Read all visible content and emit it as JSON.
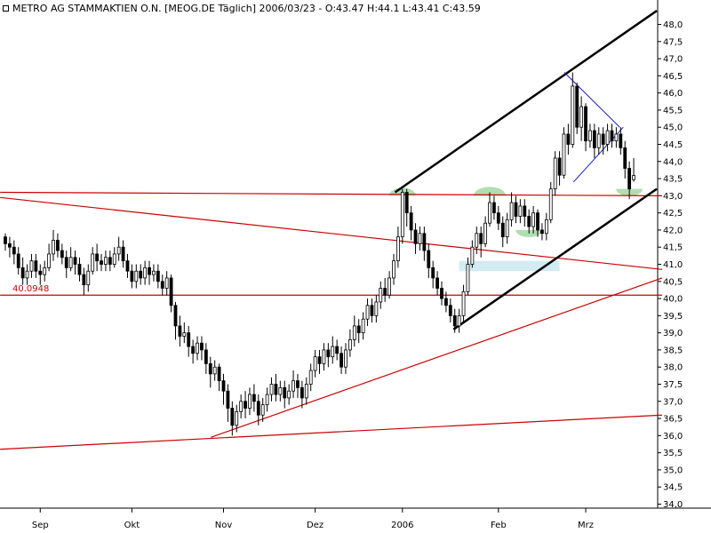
{
  "header": {
    "title": "METRO AG STAMMAKTIEN O.N. [MEOG.DE  Täglich] 2006/03/23 - O:43.47 H:44.1 L:43.41 C:43.59"
  },
  "colors": {
    "background": "#ffffff",
    "candle": "#000000",
    "trendline_red": "#cc0000",
    "channel_black": "#000000",
    "triangle_blue": "#1a1acc",
    "highlight_green": "#8fd08f",
    "highlight_blue": "#c8e6f0"
  },
  "chart_data": {
    "type": "candlestick",
    "title": "METRO AG STAMMAKTIEN O.N. [MEOG.DE  Täglich] 2006/03/23 - O:43.47 H:44.1 L:43.41 C:43.59",
    "ylim": [
      34.0,
      48.0
    ],
    "y_ticks": [
      "48,0",
      "47,5",
      "47,0",
      "46,5",
      "46,0",
      "45,5",
      "45,0",
      "44,5",
      "44,0",
      "43,5",
      "43,0",
      "42,5",
      "42,0",
      "41,5",
      "41,0",
      "40,5",
      "40,0",
      "39,5",
      "39,0",
      "38,5",
      "38,0",
      "37,5",
      "37,0",
      "36,5",
      "36,0",
      "35,5",
      "35,0",
      "34,5",
      "34,0"
    ],
    "x_ticks": [
      {
        "label": "Sep",
        "bar": 8
      },
      {
        "label": "Okt",
        "bar": 29
      },
      {
        "label": "Nov",
        "bar": 50
      },
      {
        "label": "Dez",
        "bar": 71
      },
      {
        "label": "2006",
        "bar": 91
      },
      {
        "label": "Feb",
        "bar": 113
      },
      {
        "label": "Mrz",
        "bar": 133
      }
    ],
    "price_level_label": "40.0948",
    "candles": [
      [
        41.8,
        41.6,
        41.9,
        41.4
      ],
      [
        41.6,
        41.5,
        41.8,
        41.2
      ],
      [
        41.5,
        41.3,
        41.7,
        41.0
      ],
      [
        41.3,
        40.9,
        41.5,
        40.7
      ],
      [
        40.9,
        40.6,
        41.2,
        40.4
      ],
      [
        40.6,
        40.8,
        41.0,
        40.4
      ],
      [
        40.8,
        41.1,
        41.3,
        40.6
      ],
      [
        41.1,
        40.8,
        41.3,
        40.6
      ],
      [
        40.8,
        40.7,
        41.0,
        40.4
      ],
      [
        40.7,
        40.9,
        41.1,
        40.5
      ],
      [
        40.9,
        41.3,
        41.6,
        40.8
      ],
      [
        41.3,
        41.7,
        42.0,
        41.1
      ],
      [
        41.7,
        41.4,
        41.9,
        41.2
      ],
      [
        41.4,
        41.2,
        41.6,
        41.0
      ],
      [
        41.2,
        40.9,
        41.4,
        40.6
      ],
      [
        40.9,
        41.2,
        41.5,
        40.8
      ],
      [
        41.2,
        41.0,
        41.4,
        40.7
      ],
      [
        41.0,
        40.7,
        41.2,
        40.5
      ],
      [
        40.7,
        40.4,
        40.9,
        40.1
      ],
      [
        40.4,
        40.8,
        41.0,
        40.2
      ],
      [
        40.8,
        41.3,
        41.5,
        40.7
      ],
      [
        41.3,
        41.1,
        41.6,
        40.8
      ],
      [
        41.1,
        41.0,
        41.3,
        40.8
      ],
      [
        41.0,
        41.2,
        41.4,
        40.8
      ],
      [
        41.2,
        41.0,
        41.4,
        40.8
      ],
      [
        41.0,
        41.3,
        41.5,
        40.9
      ],
      [
        41.3,
        41.5,
        41.8,
        41.1
      ],
      [
        41.5,
        41.1,
        41.7,
        40.9
      ],
      [
        41.1,
        40.8,
        41.3,
        40.6
      ],
      [
        40.8,
        40.5,
        41.0,
        40.3
      ],
      [
        40.5,
        40.8,
        41.0,
        40.3
      ],
      [
        40.8,
        40.6,
        41.0,
        40.4
      ],
      [
        40.6,
        40.9,
        41.1,
        40.4
      ],
      [
        40.9,
        40.7,
        41.1,
        40.4
      ],
      [
        40.7,
        40.8,
        41.0,
        40.5
      ],
      [
        40.8,
        40.5,
        41.0,
        40.3
      ],
      [
        40.5,
        40.3,
        40.7,
        40.1
      ],
      [
        40.3,
        40.6,
        40.8,
        40.1
      ],
      [
        40.6,
        39.8,
        40.7,
        39.6
      ],
      [
        39.8,
        39.2,
        39.9,
        38.8
      ],
      [
        39.2,
        38.9,
        39.5,
        38.6
      ],
      [
        38.9,
        39.0,
        39.3,
        38.7
      ],
      [
        39.0,
        38.6,
        39.2,
        38.3
      ],
      [
        38.6,
        38.4,
        38.8,
        38.1
      ],
      [
        38.4,
        38.7,
        38.9,
        38.2
      ],
      [
        38.7,
        38.5,
        38.9,
        38.2
      ],
      [
        38.5,
        38.1,
        38.7,
        37.8
      ],
      [
        38.1,
        37.8,
        38.3,
        37.4
      ],
      [
        37.8,
        38.0,
        38.2,
        37.6
      ],
      [
        38.0,
        37.6,
        38.1,
        37.3
      ],
      [
        37.6,
        37.3,
        37.8,
        36.9
      ],
      [
        37.3,
        36.8,
        37.5,
        36.4
      ],
      [
        36.8,
        36.3,
        37.0,
        36.0
      ],
      [
        36.3,
        36.7,
        36.9,
        36.1
      ],
      [
        36.7,
        37.0,
        37.2,
        36.5
      ],
      [
        37.0,
        36.8,
        37.3,
        36.5
      ],
      [
        36.8,
        37.2,
        37.4,
        36.6
      ],
      [
        37.2,
        37.0,
        37.5,
        36.7
      ],
      [
        37.0,
        36.6,
        37.2,
        36.3
      ],
      [
        36.6,
        36.9,
        37.1,
        36.4
      ],
      [
        36.9,
        37.2,
        37.4,
        36.7
      ],
      [
        37.2,
        37.5,
        37.7,
        37.0
      ],
      [
        37.5,
        37.2,
        37.8,
        37.0
      ],
      [
        37.2,
        37.4,
        37.6,
        37.0
      ],
      [
        37.4,
        37.1,
        37.6,
        36.8
      ],
      [
        37.1,
        37.3,
        37.5,
        36.9
      ],
      [
        37.3,
        37.6,
        37.9,
        37.1
      ],
      [
        37.6,
        37.4,
        37.8,
        37.1
      ],
      [
        37.4,
        37.1,
        37.6,
        36.8
      ],
      [
        37.1,
        37.5,
        37.7,
        36.9
      ],
      [
        37.5,
        37.9,
        38.1,
        37.3
      ],
      [
        37.9,
        38.3,
        38.5,
        37.7
      ],
      [
        38.3,
        38.1,
        38.5,
        37.8
      ],
      [
        38.1,
        38.5,
        38.7,
        37.9
      ],
      [
        38.5,
        38.3,
        38.7,
        38.0
      ],
      [
        38.3,
        38.6,
        38.9,
        38.1
      ],
      [
        38.6,
        38.4,
        38.8,
        38.2
      ],
      [
        38.4,
        38.0,
        38.6,
        37.8
      ],
      [
        38.0,
        38.5,
        38.7,
        37.8
      ],
      [
        38.5,
        38.8,
        39.1,
        38.3
      ],
      [
        38.8,
        39.2,
        39.5,
        38.6
      ],
      [
        39.2,
        39.0,
        39.4,
        38.7
      ],
      [
        39.0,
        39.4,
        39.6,
        38.8
      ],
      [
        39.4,
        39.8,
        40.0,
        39.2
      ],
      [
        39.8,
        39.5,
        40.0,
        39.3
      ],
      [
        39.5,
        39.9,
        40.1,
        39.3
      ],
      [
        39.9,
        40.3,
        40.5,
        39.7
      ],
      [
        40.3,
        40.1,
        40.6,
        39.9
      ],
      [
        40.1,
        40.6,
        40.8,
        40.0
      ],
      [
        40.6,
        41.1,
        41.3,
        40.4
      ],
      [
        41.1,
        41.8,
        42.1,
        40.9
      ],
      [
        41.8,
        43.1,
        43.2,
        41.6
      ],
      [
        43.1,
        42.5,
        43.2,
        42.1
      ],
      [
        42.5,
        42.0,
        42.7,
        41.7
      ],
      [
        42.0,
        41.6,
        42.2,
        41.3
      ],
      [
        41.6,
        41.9,
        42.1,
        41.4
      ],
      [
        41.9,
        41.4,
        42.1,
        41.1
      ],
      [
        41.4,
        40.9,
        41.6,
        40.6
      ],
      [
        40.9,
        40.6,
        41.1,
        40.3
      ],
      [
        40.6,
        40.3,
        40.8,
        40.1
      ],
      [
        40.3,
        40.0,
        40.5,
        39.8
      ],
      [
        40.0,
        39.8,
        40.2,
        39.6
      ],
      [
        39.8,
        39.5,
        40.0,
        39.3
      ],
      [
        39.5,
        39.2,
        39.7,
        39.0
      ],
      [
        39.2,
        39.5,
        39.7,
        39.0
      ],
      [
        39.5,
        40.2,
        40.4,
        39.3
      ],
      [
        40.2,
        41.0,
        41.2,
        40.1
      ],
      [
        41.0,
        41.5,
        41.7,
        40.9
      ],
      [
        41.5,
        41.9,
        42.1,
        41.3
      ],
      [
        41.9,
        41.6,
        42.1,
        41.2
      ],
      [
        41.6,
        42.2,
        42.4,
        41.5
      ],
      [
        42.2,
        42.8,
        43.1,
        42.1
      ],
      [
        42.8,
        42.5,
        43.0,
        42.3
      ],
      [
        42.5,
        42.2,
        42.7,
        42.0
      ],
      [
        42.2,
        41.8,
        42.4,
        41.5
      ],
      [
        41.8,
        42.3,
        42.5,
        41.6
      ],
      [
        42.3,
        42.8,
        43.1,
        42.1
      ],
      [
        42.8,
        42.4,
        43.0,
        42.2
      ],
      [
        42.4,
        42.7,
        42.9,
        42.2
      ],
      [
        42.7,
        42.4,
        42.9,
        42.1
      ],
      [
        42.4,
        42.1,
        42.6,
        41.9
      ],
      [
        42.1,
        42.5,
        42.7,
        41.9
      ],
      [
        42.5,
        42.0,
        42.6,
        41.8
      ],
      [
        42.0,
        41.9,
        42.2,
        41.7
      ],
      [
        41.9,
        42.3,
        42.5,
        41.7
      ],
      [
        42.3,
        43.2,
        43.4,
        42.2
      ],
      [
        43.2,
        44.1,
        44.3,
        43.0
      ],
      [
        44.1,
        43.6,
        44.3,
        43.3
      ],
      [
        43.6,
        44.8,
        45.0,
        43.5
      ],
      [
        44.8,
        44.5,
        45.1,
        44.2
      ],
      [
        44.5,
        46.2,
        46.6,
        44.4
      ],
      [
        46.2,
        45.0,
        46.3,
        44.8
      ],
      [
        45.0,
        45.6,
        45.9,
        44.6
      ],
      [
        45.6,
        44.6,
        45.7,
        44.3
      ],
      [
        44.6,
        44.9,
        45.1,
        44.4
      ],
      [
        44.9,
        44.4,
        45.1,
        44.1
      ],
      [
        44.4,
        44.8,
        45.0,
        44.2
      ],
      [
        44.8,
        44.5,
        45.0,
        44.2
      ],
      [
        44.5,
        44.9,
        45.1,
        44.3
      ],
      [
        44.9,
        44.6,
        45.1,
        44.4
      ],
      [
        44.6,
        44.8,
        45.0,
        44.4
      ],
      [
        44.8,
        44.4,
        45.0,
        44.2
      ],
      [
        44.4,
        43.8,
        44.6,
        43.5
      ],
      [
        43.8,
        43.2,
        44.0,
        42.9
      ],
      [
        43.47,
        43.59,
        44.1,
        43.41
      ]
    ]
  }
}
